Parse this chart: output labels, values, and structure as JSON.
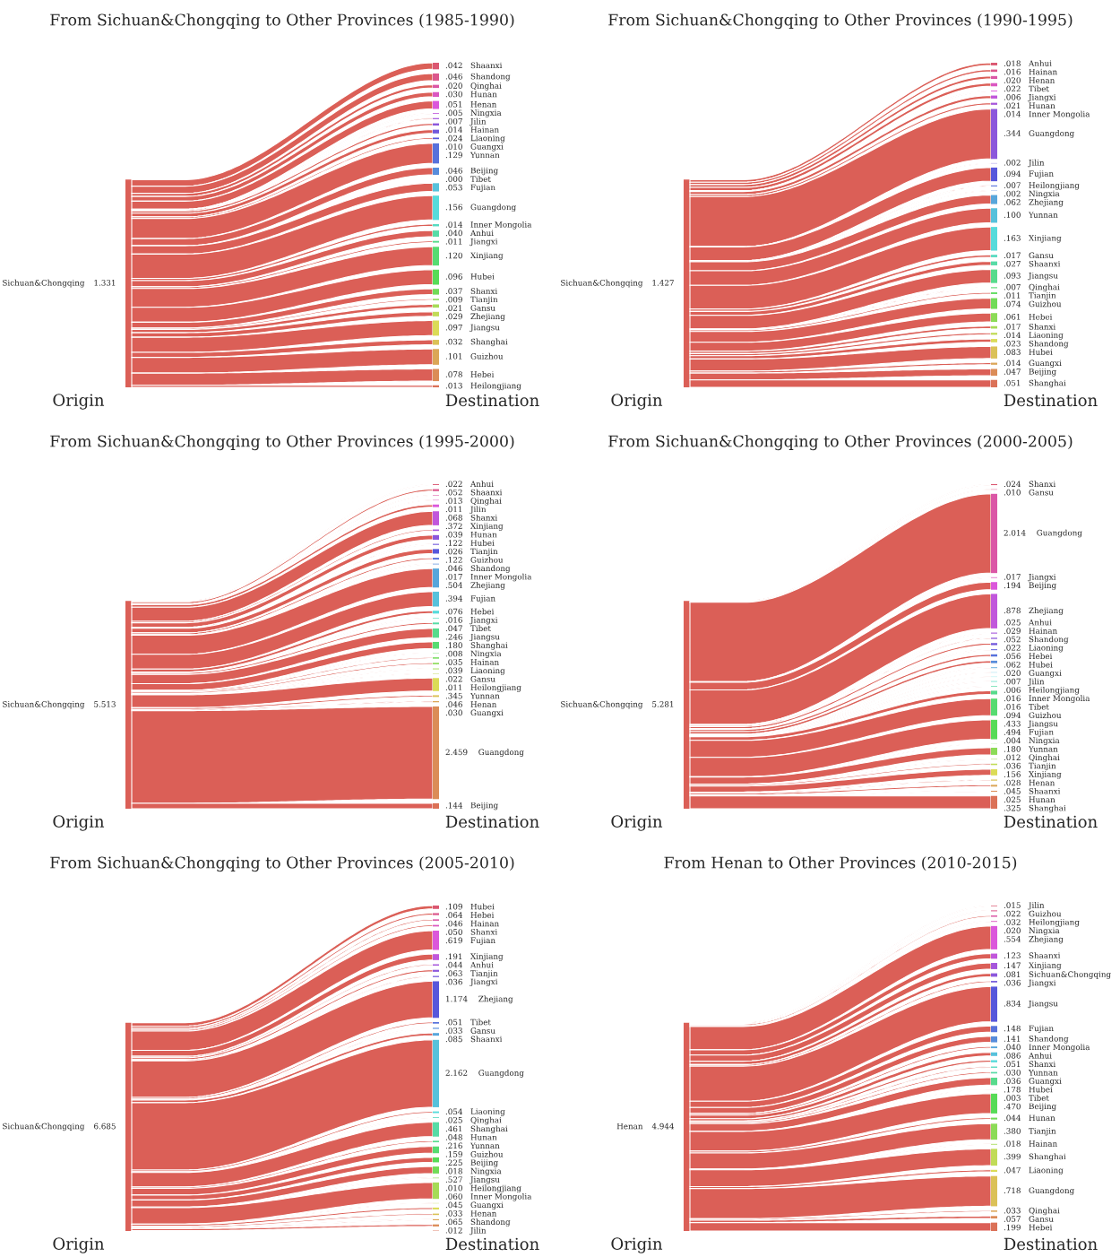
{
  "chart_data": [
    {
      "type": "other",
      "title": "From Sichuan&Chongqing to Other Provinces (1985-1990)",
      "annotations": [
        "Sichuan&Chongqing",
        "1.331",
        "Origin",
        "Destination"
      ],
      "color": "#db5f57",
      "categories": [
        "Shaanxi",
        "Shandong",
        "Qinghai",
        "Hunan",
        "Henan",
        "Ningxia",
        "Jilin",
        "Hainan",
        "Liaoning",
        "Guangxi",
        "Yunnan",
        "Beijing",
        "Tibet",
        "Fujian",
        "Guangdong",
        "Inner Mongolia",
        "Anhui",
        "Jiangxi",
        "Xinjiang",
        "Hubei",
        "Shanxi",
        "Tianjin",
        "Gansu",
        "Zhejiang",
        "Jiangsu",
        "Shanghai",
        "Guizhou",
        "Hebei",
        "Heilongjiang"
      ],
      "values": [
        0.042,
        0.046,
        0.02,
        0.03,
        0.051,
        0.005,
        0.007,
        0.014,
        0.024,
        0.01,
        0.129,
        0.046,
        0.0,
        0.053,
        0.156,
        0.014,
        0.04,
        0.011,
        0.12,
        0.096,
        0.037,
        0.009,
        0.021,
        0.029,
        0.097,
        0.032,
        0.101,
        0.078,
        0.013
      ],
      "value_labels": [
        ".042",
        ".046",
        ".020",
        ".030",
        ".051",
        ".005",
        ".007",
        ".014",
        ".024",
        ".010",
        ".129",
        ".046",
        ".000",
        ".053",
        ".156",
        ".014",
        ".040",
        ".011",
        ".120",
        ".096",
        ".037",
        ".009",
        ".021",
        ".029",
        ".097",
        ".032",
        ".101",
        ".078",
        ".013"
      ],
      "colors": [
        "#db5771",
        "#db578c",
        "#db57a6",
        "#db57c1",
        "#db57db",
        "#c157db",
        "#a657db",
        "#8c57db",
        "#7157db",
        "#5757db",
        "#5771db",
        "#578cdb",
        "#57a6db",
        "#57c1db",
        "#57dbdb",
        "#57dbc1",
        "#57dba6",
        "#57db8c",
        "#57db71",
        "#57db57",
        "#71db57",
        "#8cdb57",
        "#a6db57",
        "#c1db57",
        "#dbdb57",
        "#dbc157",
        "#dba657",
        "#db8c57",
        "#db7157"
      ]
    },
    {
      "type": "other",
      "title": "From Sichuan&Chongqing to Other Provinces (1990-1995)",
      "annotations": [
        "Sichuan&Chongqing",
        "1.427",
        "Origin",
        "Destination"
      ],
      "color": "#db5f57",
      "categories": [
        "Anhui",
        "Hainan",
        "Henan",
        "Tibet",
        "Jiangxi",
        "Hunan",
        "Inner Mongolia",
        "Guangdong",
        "Jilin",
        "Fujian",
        "Heilongjiang",
        "Ningxia",
        "Zhejiang",
        "Yunnan",
        "Xinjiang",
        "Gansu",
        "Shaanxi",
        "Jiangsu",
        "Qinghai",
        "Tianjin",
        "Guizhou",
        "Hebei",
        "Shanxi",
        "Liaoning",
        "Shandong",
        "Hubei",
        "Guangxi",
        "Beijing",
        "Shanghai"
      ],
      "values": [
        0.018,
        0.016,
        0.02,
        0.022,
        0.006,
        0.021,
        0.014,
        0.344,
        0.002,
        0.094,
        0.007,
        0.002,
        0.062,
        0.1,
        0.163,
        0.017,
        0.027,
        0.093,
        0.007,
        0.011,
        0.074,
        0.061,
        0.017,
        0.014,
        0.023,
        0.083,
        0.014,
        0.047,
        0.051
      ],
      "value_labels": [
        ".018",
        ".016",
        ".020",
        ".022",
        ".006",
        ".021",
        ".014",
        ".344",
        ".002",
        ".094",
        ".007",
        ".002",
        ".062",
        ".100",
        ".163",
        ".017",
        ".027",
        ".093",
        ".007",
        ".011",
        ".074",
        ".061",
        ".017",
        ".014",
        ".023",
        ".083",
        ".014",
        ".047",
        ".051"
      ],
      "colors": [
        "#db5771",
        "#db578c",
        "#db57a6",
        "#db57c1",
        "#db57db",
        "#c157db",
        "#a657db",
        "#8c57db",
        "#7157db",
        "#5757db",
        "#5771db",
        "#578cdb",
        "#57a6db",
        "#57c1db",
        "#57dbdb",
        "#57dbc1",
        "#57dba6",
        "#57db8c",
        "#57db71",
        "#57db57",
        "#71db57",
        "#8cdb57",
        "#a6db57",
        "#c1db57",
        "#dbdb57",
        "#dbc157",
        "#dba657",
        "#db8c57",
        "#db7157"
      ]
    },
    {
      "type": "other",
      "title": "From Sichuan&Chongqing to Other Provinces (1995-2000)",
      "annotations": [
        "Sichuan&Chongqing",
        "5.513",
        "Origin",
        "Destination"
      ],
      "color": "#db5f57",
      "categories": [
        "Anhui",
        "Shaanxi",
        "Qinghai",
        "Jilin",
        "Shanxi",
        "Xinjiang",
        "Hunan",
        "Hubei",
        "Tianjin",
        "Guizhou",
        "Shandong",
        "Inner Mongolia",
        "Zhejiang",
        "Fujian",
        "Hebei",
        "Jiangxi",
        "Tibet",
        "Jiangsu",
        "Shanghai",
        "Ningxia",
        "Hainan",
        "Liaoning",
        "Gansu",
        "Heilongjiang",
        "Yunnan",
        "Henan",
        "Guangxi",
        "Guangdong",
        "Beijing"
      ],
      "values": [
        0.022,
        0.052,
        0.013,
        0.011,
        0.068,
        0.372,
        0.039,
        0.122,
        0.026,
        0.122,
        0.046,
        0.017,
        0.504,
        0.394,
        0.076,
        0.016,
        0.047,
        0.246,
        0.18,
        0.008,
        0.035,
        0.039,
        0.022,
        0.011,
        0.345,
        0.046,
        0.03,
        2.459,
        0.144
      ],
      "value_labels": [
        ".022",
        ".052",
        ".013",
        ".011",
        ".068",
        ".372",
        ".039",
        ".122",
        ".026",
        ".122",
        ".046",
        ".017",
        ".504",
        ".394",
        ".076",
        ".016",
        ".047",
        ".246",
        ".180",
        ".008",
        ".035",
        ".039",
        ".022",
        ".011",
        ".345",
        ".046",
        ".030",
        "2.459",
        ".144"
      ],
      "colors": [
        "#db5771",
        "#db578c",
        "#db57a6",
        "#db57c1",
        "#db57db",
        "#c157db",
        "#a657db",
        "#8c57db",
        "#7157db",
        "#5757db",
        "#5771db",
        "#578cdb",
        "#57a6db",
        "#57c1db",
        "#57dbdb",
        "#57dbc1",
        "#57dba6",
        "#57db8c",
        "#57db71",
        "#57db57",
        "#71db57",
        "#8cdb57",
        "#a6db57",
        "#c1db57",
        "#dbdb57",
        "#dbc157",
        "#dba657",
        "#db8c57",
        "#db7157"
      ]
    },
    {
      "type": "other",
      "title": "From Sichuan&Chongqing to Other Provinces (2000-2005)",
      "annotations": [
        "Sichuan&Chongqing",
        "5.281",
        "Origin",
        "Destination"
      ],
      "color": "#db5f57",
      "categories": [
        "Shanxi",
        "Gansu",
        "Guangdong",
        "Jiangxi",
        "Beijing",
        "Zhejiang",
        "Anhui",
        "Hainan",
        "Shandong",
        "Liaoning",
        "Hebei",
        "Hubei",
        "Guangxi",
        "Jilin",
        "Heilongjiang",
        "Inner Mongolia",
        "Tibet",
        "Guizhou",
        "Jiangsu",
        "Fujian",
        "Ningxia",
        "Yunnan",
        "Qinghai",
        "Tianjin",
        "Xinjiang",
        "Henan",
        "Shaanxi",
        "Hunan",
        "Shanghai"
      ],
      "values": [
        0.024,
        0.01,
        2.014,
        0.017,
        0.194,
        0.878,
        0.025,
        0.029,
        0.052,
        0.022,
        0.056,
        0.062,
        0.02,
        0.007,
        0.006,
        0.016,
        0.016,
        0.094,
        0.433,
        0.494,
        0.004,
        0.18,
        0.012,
        0.036,
        0.156,
        0.028,
        0.045,
        0.025,
        0.325
      ],
      "value_labels": [
        ".024",
        ".010",
        "2.014",
        ".017",
        ".194",
        ".878",
        ".025",
        ".029",
        ".052",
        ".022",
        ".056",
        ".062",
        ".020",
        ".007",
        ".006",
        ".016",
        ".016",
        ".094",
        ".433",
        ".494",
        ".004",
        ".180",
        ".012",
        ".036",
        ".156",
        ".028",
        ".045",
        ".025",
        ".325"
      ],
      "colors": [
        "#db5771",
        "#db578c",
        "#db57a6",
        "#db57c1",
        "#db57db",
        "#c157db",
        "#a657db",
        "#8c57db",
        "#7157db",
        "#5757db",
        "#5771db",
        "#578cdb",
        "#57a6db",
        "#57c1db",
        "#57dbdb",
        "#57dbc1",
        "#57dba6",
        "#57db8c",
        "#57db71",
        "#57db57",
        "#71db57",
        "#8cdb57",
        "#a6db57",
        "#c1db57",
        "#dbdb57",
        "#dbc157",
        "#dba657",
        "#db8c57",
        "#db7157"
      ]
    },
    {
      "type": "other",
      "title": "From Sichuan&Chongqing to Other Provinces (2005-2010)",
      "annotations": [
        "Sichuan&Chongqing",
        "6.685",
        "Origin",
        "Destination"
      ],
      "color": "#db5f57",
      "categories": [
        "Hubei",
        "Hebei",
        "Hainan",
        "Shanxi",
        "Fujian",
        "Xinjiang",
        "Anhui",
        "Tianjin",
        "Jiangxi",
        "Zhejiang",
        "Tibet",
        "Gansu",
        "Shaanxi",
        "Guangdong",
        "Liaoning",
        "Qinghai",
        "Shanghai",
        "Hunan",
        "Yunnan",
        "Guizhou",
        "Beijing",
        "Ningxia",
        "Jiangsu",
        "Heilongjiang",
        "Inner Mongolia",
        "Guangxi",
        "Henan",
        "Shandong",
        "Jilin"
      ],
      "values": [
        0.109,
        0.064,
        0.046,
        0.05,
        0.619,
        0.191,
        0.044,
        0.063,
        0.036,
        1.174,
        0.051,
        0.033,
        0.085,
        2.162,
        0.054,
        0.025,
        0.461,
        0.048,
        0.216,
        0.159,
        0.225,
        0.018,
        0.527,
        0.01,
        0.06,
        0.045,
        0.033,
        0.065,
        0.012
      ],
      "value_labels": [
        ".109",
        ".064",
        ".046",
        ".050",
        ".619",
        ".191",
        ".044",
        ".063",
        ".036",
        "1.174",
        ".051",
        ".033",
        ".085",
        "2.162",
        ".054",
        ".025",
        ".461",
        ".048",
        ".216",
        ".159",
        ".225",
        ".018",
        ".527",
        ".010",
        ".060",
        ".045",
        ".033",
        ".065",
        ".012"
      ],
      "colors": [
        "#db5771",
        "#db578c",
        "#db57a6",
        "#db57c1",
        "#db57db",
        "#c157db",
        "#a657db",
        "#8c57db",
        "#7157db",
        "#5757db",
        "#5771db",
        "#578cdb",
        "#57a6db",
        "#57c1db",
        "#57dbdb",
        "#57dbc1",
        "#57dba6",
        "#57db8c",
        "#57db71",
        "#57db57",
        "#71db57",
        "#8cdb57",
        "#a6db57",
        "#c1db57",
        "#dbdb57",
        "#dbc157",
        "#dba657",
        "#db8c57",
        "#db7157"
      ]
    },
    {
      "type": "other",
      "title": "From Henan to Other Provinces (2010-2015)",
      "annotations": [
        "Henan",
        "4.944",
        "Origin",
        "Destination"
      ],
      "color": "#db5f57",
      "categories": [
        "Jilin",
        "Guizhou",
        "Heilongjiang",
        "Ningxia",
        "Zhejiang",
        "Shaanxi",
        "Xinjiang",
        "Sichuan&Chongqing",
        "Jiangxi",
        "Jiangsu",
        "Fujian",
        "Shandong",
        "Inner Mongolia",
        "Anhui",
        "Shanxi",
        "Yunnan",
        "Guangxi",
        "Hubei",
        "Tibet",
        "Beijing",
        "Hunan",
        "Tianjin",
        "Hainan",
        "Shanghai",
        "Liaoning",
        "Guangdong",
        "Qinghai",
        "Gansu",
        "Hebei"
      ],
      "values": [
        0.015,
        0.022,
        0.032,
        0.02,
        0.554,
        0.123,
        0.147,
        0.081,
        0.036,
        0.834,
        0.148,
        0.141,
        0.04,
        0.086,
        0.051,
        0.03,
        0.036,
        0.178,
        0.003,
        0.47,
        0.044,
        0.38,
        0.018,
        0.399,
        0.047,
        0.718,
        0.033,
        0.057,
        0.199
      ],
      "value_labels": [
        ".015",
        ".022",
        ".032",
        ".020",
        ".554",
        ".123",
        ".147",
        ".081",
        ".036",
        ".834",
        ".148",
        ".141",
        ".040",
        ".086",
        ".051",
        ".030",
        ".036",
        ".178",
        ".003",
        ".470",
        ".044",
        ".380",
        ".018",
        ".399",
        ".047",
        ".718",
        ".033",
        ".057",
        ".199"
      ],
      "colors": [
        "#db5771",
        "#db578c",
        "#db57a6",
        "#db57c1",
        "#db57db",
        "#c157db",
        "#a657db",
        "#8c57db",
        "#7157db",
        "#5757db",
        "#5771db",
        "#578cdb",
        "#57a6db",
        "#57c1db",
        "#57dbdb",
        "#57dbc1",
        "#57dba6",
        "#57db8c",
        "#57db71",
        "#57db57",
        "#71db57",
        "#8cdb57",
        "#a6db57",
        "#c1db57",
        "#dbdb57",
        "#dbc157",
        "#dba657",
        "#db8c57",
        "#db7157"
      ]
    }
  ]
}
